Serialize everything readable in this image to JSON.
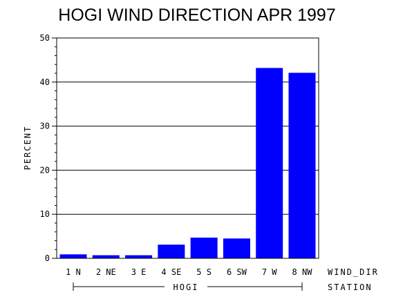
{
  "chart_data": {
    "type": "bar",
    "title": "HOGI WIND DIRECTION APR 1997",
    "ylabel": "PERCENT",
    "xlabel": "WIND_DIR",
    "group_label": "HOGI",
    "group_axis_label": "STATION",
    "categories": [
      "1 N",
      "2 NE",
      "3 E",
      "4 SE",
      "5 S",
      "6 SW",
      "7 W",
      "8 NW"
    ],
    "values": [
      0.9,
      0.7,
      0.7,
      3.1,
      4.7,
      4.5,
      43.2,
      42.1
    ],
    "ylim": [
      0,
      50
    ],
    "yticks": [
      0,
      10,
      20,
      30,
      40,
      50
    ],
    "grid": true,
    "bar_color": "#0000ff"
  }
}
